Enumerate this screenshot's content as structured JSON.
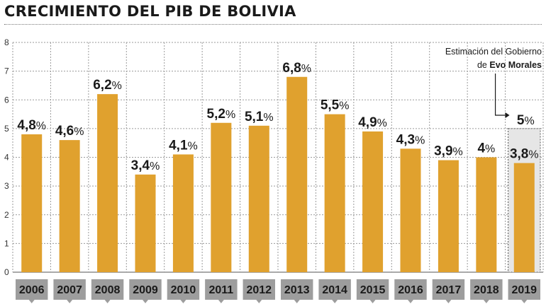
{
  "header": {
    "title": "CRECIMIENTO DEL PIB DE BOLIVIA"
  },
  "annotation": {
    "line1": "Estimación del Gobierno",
    "prefix": "de",
    "bold": "Evo Morales"
  },
  "colors": {
    "bar": "#e0a12e",
    "label_box": "#9d9d9d",
    "estimate_fill": "#e6e6e6"
  },
  "chart_data": {
    "type": "bar",
    "title": "CRECIMIENTO DEL PIB DE BOLIVIA",
    "xlabel": "",
    "ylabel": "",
    "categories": [
      "2006",
      "2007",
      "2008",
      "2009",
      "2010",
      "2011",
      "2012",
      "2013",
      "2014",
      "2015",
      "2016",
      "2017",
      "2018",
      "2019"
    ],
    "values": [
      4.8,
      4.6,
      6.2,
      3.4,
      4.1,
      5.2,
      5.1,
      6.8,
      5.5,
      4.9,
      4.3,
      3.9,
      4.0,
      3.8
    ],
    "value_labels": [
      "4,8",
      "4,6",
      "6,2",
      "3,4",
      "4,1",
      "5,2",
      "5,1",
      "6,8",
      "5,5",
      "4,9",
      "4,3",
      "3,9",
      "4",
      "3,8"
    ],
    "value_suffix": "%",
    "ylim": [
      0,
      8
    ],
    "yticks": [
      "0",
      "1",
      "2",
      "3",
      "4",
      "5",
      "6",
      "7",
      "8"
    ],
    "grid": true,
    "estimate": {
      "category": "2019",
      "value": 5,
      "label": "5"
    }
  }
}
